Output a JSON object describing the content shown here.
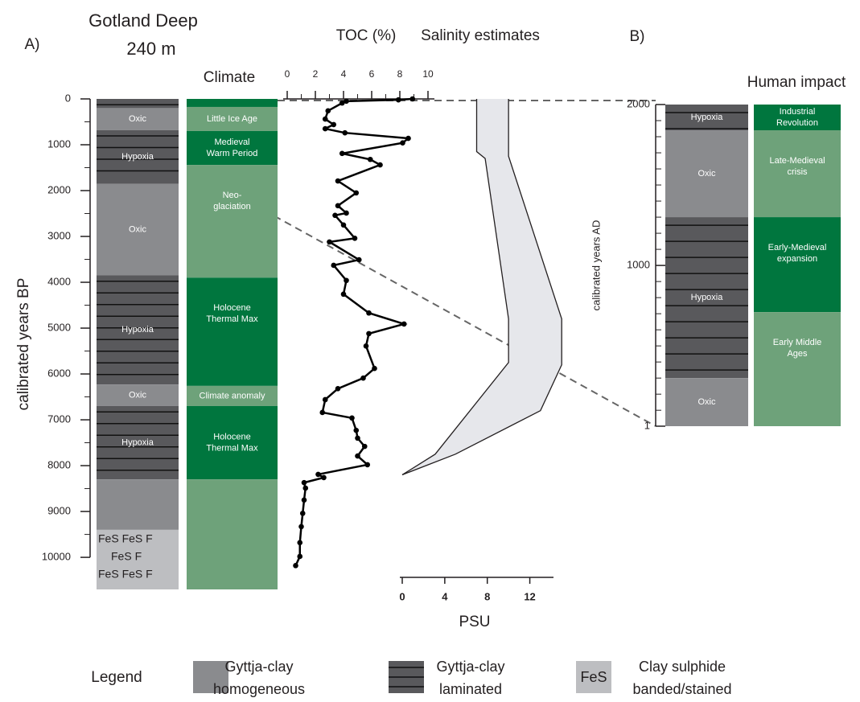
{
  "header": {
    "panel_a": "A)",
    "title_lines": [
      "Gotland Deep",
      "240 m"
    ],
    "panel_b": "B)"
  },
  "chart_data": [
    {
      "type": "column",
      "y_label": "calibrated years BP",
      "ylim": [
        0,
        10700
      ],
      "yticks": [
        0,
        1000,
        2000,
        3000,
        4000,
        5000,
        6000,
        7000,
        8000,
        9000,
        10000
      ],
      "yminor": [
        500,
        1500,
        2500,
        3500,
        4500,
        5500,
        6500,
        7500,
        8500,
        9500
      ],
      "segments": [
        {
          "from": 0,
          "to": 200,
          "kind": "laminated"
        },
        {
          "from": 200,
          "to": 680,
          "kind": "homogeneous",
          "label": "Oxic"
        },
        {
          "from": 680,
          "to": 1850,
          "kind": "laminated",
          "label": "Hypoxia"
        },
        {
          "from": 1850,
          "to": 3850,
          "kind": "homogeneous",
          "label": "Oxic"
        },
        {
          "from": 3850,
          "to": 6230,
          "kind": "laminated",
          "label": "Hypoxia"
        },
        {
          "from": 6230,
          "to": 6700,
          "kind": "homogeneous",
          "label": "Oxic"
        },
        {
          "from": 6700,
          "to": 8300,
          "kind": "laminated",
          "label": "Hypoxia"
        },
        {
          "from": 8300,
          "to": 9400,
          "kind": "homogeneous"
        },
        {
          "from": 9400,
          "to": 10700,
          "kind": "sulphide",
          "lines": [
            "FeS  FeS  F",
            "FeS  F",
            "FeS  FeS  F"
          ]
        }
      ]
    },
    {
      "type": "zones",
      "title": "Climate",
      "segments": [
        {
          "from": 0,
          "to": 175,
          "color": "#00763e"
        },
        {
          "from": 175,
          "to": 700,
          "color": "#6ea27a",
          "label": [
            "Little Ice Age"
          ]
        },
        {
          "from": 700,
          "to": 1440,
          "color": "#00763e",
          "label": [
            "Medieval",
            "Warm Period"
          ]
        },
        {
          "from": 1440,
          "to": 3900,
          "color": "#6ea27a",
          "label": [
            "Neo-",
            "glaciation"
          ]
        },
        {
          "from": 3900,
          "to": 6260,
          "color": "#00763e",
          "label": [
            "Holocene",
            "Thermal Max"
          ]
        },
        {
          "from": 6260,
          "to": 6700,
          "color": "#6ea27a",
          "label": [
            "Climate anomaly"
          ]
        },
        {
          "from": 6700,
          "to": 8300,
          "color": "#00763e",
          "label": [
            "Holocene",
            "Thermal Max"
          ]
        },
        {
          "from": 8300,
          "to": 10700,
          "color": "#6ea27a"
        }
      ]
    },
    {
      "type": "line",
      "title": "TOC (%)",
      "xlim": [
        0,
        10
      ],
      "xticks": [
        0,
        2,
        4,
        6,
        8,
        10
      ],
      "xminor": [
        1,
        3,
        5,
        7,
        9
      ],
      "color": "#000000",
      "x": [
        8.9,
        7.9,
        4.2,
        3.9,
        2.9,
        2.7,
        3.3,
        2.7,
        4.1,
        8.6,
        8.2,
        3.9,
        5.9,
        6.6,
        3.6,
        4.9,
        3.6,
        4.2,
        3.4,
        4.0,
        4.8,
        3.0,
        5.1,
        3.3,
        4.2,
        4.0,
        5.8,
        8.3,
        5.8,
        5.6,
        6.2,
        5.4,
        3.6,
        2.7,
        2.5,
        4.6,
        4.9,
        5.0,
        5.5,
        5.0,
        5.7,
        2.2,
        2.6,
        1.2,
        1.3,
        1.2,
        1.1,
        1.0,
        0.9,
        0.9,
        0.6
      ],
      "y": [
        0,
        20,
        50,
        90,
        260,
        440,
        560,
        650,
        740,
        860,
        960,
        1190,
        1320,
        1440,
        1790,
        2050,
        2330,
        2490,
        2540,
        2750,
        3040,
        3120,
        3510,
        3630,
        3960,
        4260,
        4670,
        4910,
        5120,
        5390,
        5880,
        6090,
        6320,
        6560,
        6840,
        6960,
        7230,
        7400,
        7580,
        7790,
        7980,
        8190,
        8260,
        8370,
        8490,
        8750,
        9040,
        9330,
        9680,
        9980,
        10180
      ]
    },
    {
      "type": "band",
      "title": "Salinity estimates",
      "x_label": "PSU",
      "xlim": [
        0,
        14
      ],
      "xticks": [
        0,
        4,
        8,
        12
      ],
      "color": "#e6e7eb",
      "series": [
        {
          "x": [
            7,
            7,
            7.8,
            10,
            10,
            3.1,
            0
          ],
          "y": [
            0,
            1150,
            1300,
            4800,
            5750,
            7750,
            8200
          ]
        },
        {
          "x": [
            10,
            10,
            15,
            15,
            13,
            5,
            0
          ],
          "y": [
            0,
            1250,
            4800,
            5800,
            6800,
            7750,
            8200
          ]
        }
      ]
    },
    {
      "type": "column",
      "y_label": "calibrated years AD",
      "ylim": [
        1,
        2000
      ],
      "yticks": [
        1,
        1000,
        2000
      ],
      "yminor": [
        100,
        200,
        300,
        400,
        500,
        600,
        700,
        800,
        900,
        1100,
        1200,
        1300,
        1400,
        1500,
        1600,
        1700,
        1800,
        1900
      ],
      "segments": [
        {
          "from": 2000,
          "to": 1840,
          "kind": "laminated",
          "label": "Hypoxia"
        },
        {
          "from": 1840,
          "to": 1300,
          "kind": "homogeneous",
          "label": "Oxic"
        },
        {
          "from": 1300,
          "to": 300,
          "kind": "laminated",
          "label": "Hypoxia"
        },
        {
          "from": 300,
          "to": 1,
          "kind": "homogeneous",
          "label": "Oxic"
        }
      ]
    },
    {
      "type": "zones",
      "title": "Human impact",
      "segments": [
        {
          "from": 2000,
          "to": 1840,
          "color": "#00763e",
          "label": [
            "Industrial",
            "Revolution"
          ]
        },
        {
          "from": 1840,
          "to": 1300,
          "color": "#6ea27a",
          "label": [
            "Late-Medieval",
            "crisis"
          ]
        },
        {
          "from": 1300,
          "to": 710,
          "color": "#00763e",
          "label": [
            "Early-Medieval",
            "expansion"
          ]
        },
        {
          "from": 710,
          "to": 1,
          "color": "#6ea27a",
          "label": [
            "Early Middle",
            "Ages"
          ]
        }
      ]
    }
  ],
  "legend": {
    "title": "Legend",
    "items": [
      {
        "kind": "homogeneous",
        "lines": [
          "Gyttja-clay",
          "homogeneous"
        ]
      },
      {
        "kind": "laminated",
        "lines": [
          "Gyttja-clay",
          "laminated"
        ]
      },
      {
        "kind": "sulphide",
        "swatch": "FeS",
        "lines": [
          "Clay sulphide",
          "banded/stained"
        ]
      }
    ]
  }
}
